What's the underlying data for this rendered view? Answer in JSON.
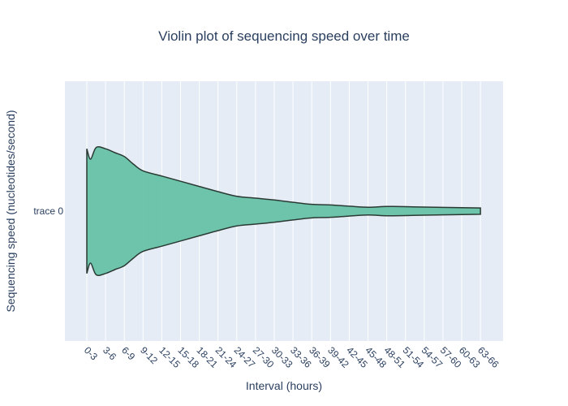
{
  "chart_data": {
    "type": "violin",
    "orientation": "horizontal",
    "title": "Violin plot of sequencing speed over time",
    "xlabel": "Interval (hours)",
    "ylabel": "Sequencing speed (nucleotides/second)",
    "grid": true,
    "colors": {
      "plot_bg": "#e5ecf6",
      "grid": "#ffffff",
      "fill": "#66c2a5",
      "line": "#2a3a33",
      "text": "#2a3f5f"
    },
    "categories": [
      "0-3",
      "3-6",
      "6-9",
      "9-12",
      "12-15",
      "15-18",
      "18-21",
      "21-24",
      "24-27",
      "27-30",
      "30-33",
      "33-36",
      "36-39",
      "39-42",
      "42-45",
      "45-48",
      "48-51",
      "51-54",
      "54-57",
      "57-60",
      "60-63",
      "63-66"
    ],
    "series": [
      {
        "y_label": "trace 0",
        "density": [
          {
            "x": 0.0,
            "w": 0.24
          },
          {
            "x": 0.2,
            "w": 0.2
          },
          {
            "x": 0.5,
            "w": 0.245
          },
          {
            "x": 1.0,
            "w": 0.24
          },
          {
            "x": 1.5,
            "w": 0.225
          },
          {
            "x": 2.0,
            "w": 0.21
          },
          {
            "x": 2.5,
            "w": 0.18
          },
          {
            "x": 3.0,
            "w": 0.155
          },
          {
            "x": 4.0,
            "w": 0.135
          },
          {
            "x": 5.0,
            "w": 0.115
          },
          {
            "x": 6.0,
            "w": 0.095
          },
          {
            "x": 7.0,
            "w": 0.075
          },
          {
            "x": 8.0,
            "w": 0.057
          },
          {
            "x": 9.0,
            "w": 0.05
          },
          {
            "x": 10.0,
            "w": 0.043
          },
          {
            "x": 11.0,
            "w": 0.034
          },
          {
            "x": 12.0,
            "w": 0.026
          },
          {
            "x": 13.0,
            "w": 0.024
          },
          {
            "x": 14.0,
            "w": 0.019
          },
          {
            "x": 15.0,
            "w": 0.015
          },
          {
            "x": 16.0,
            "w": 0.018
          },
          {
            "x": 17.0,
            "w": 0.017
          },
          {
            "x": 21.0,
            "w": 0.012
          }
        ]
      }
    ]
  }
}
